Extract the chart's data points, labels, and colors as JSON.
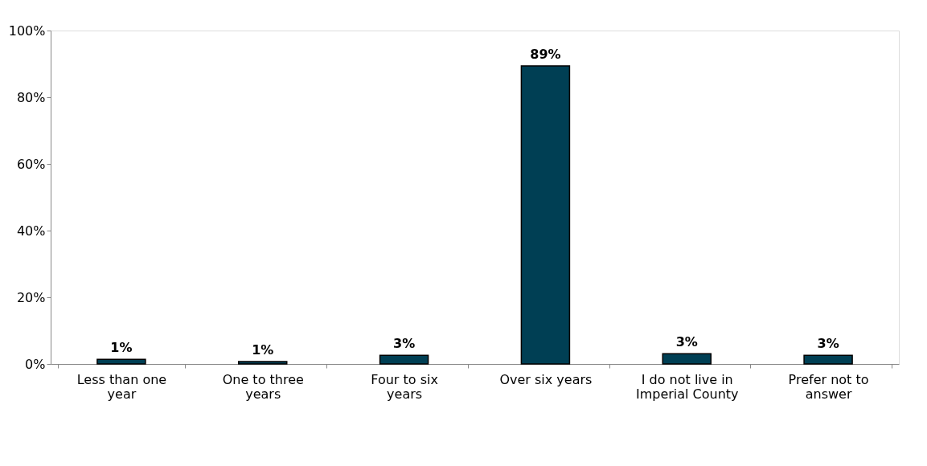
{
  "chart_data": {
    "type": "bar",
    "categories": [
      "Less than one year",
      "One to three years",
      "Four to six years",
      "Over six years",
      "I do not live in Imperial County",
      "Prefer not to answer"
    ],
    "values": [
      1.4,
      0.7,
      2.6,
      89.4,
      3.1,
      2.6
    ],
    "value_labels": [
      "1%",
      "1%",
      "3%",
      "89%",
      "3%",
      "3%"
    ],
    "color": "#003f54",
    "ylim": [
      0,
      100
    ],
    "yticks": [
      {
        "value": 0,
        "label": "0%"
      },
      {
        "value": 20,
        "label": "20%"
      },
      {
        "value": 40,
        "label": "40%"
      },
      {
        "value": 60,
        "label": "60%"
      },
      {
        "value": 80,
        "label": "80%"
      },
      {
        "value": 100,
        "label": "100%"
      }
    ],
    "grid": false
  }
}
